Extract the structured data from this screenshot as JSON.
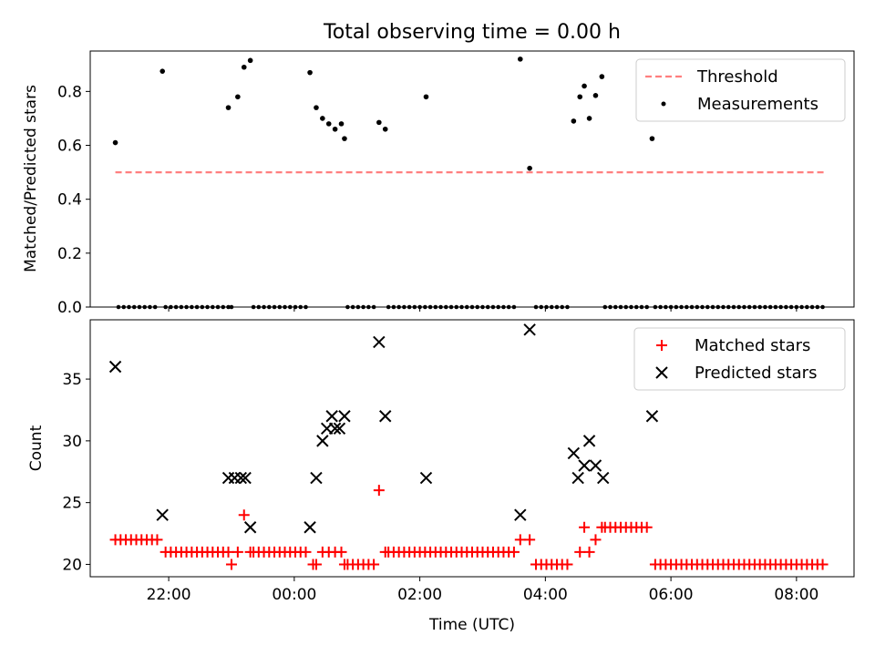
{
  "title": "Total observing time = 0.00 h",
  "chart_data": [
    {
      "type": "scatter",
      "ylabel": "Matched/Predicted stars",
      "ylim": [
        0,
        0.95
      ],
      "yticks": [
        0.0,
        0.2,
        0.4,
        0.6,
        0.8
      ],
      "ytick_labels": [
        "0.0",
        "0.2",
        "0.4",
        "0.6",
        "0.8"
      ],
      "threshold": {
        "name": "Threshold",
        "value": 0.5,
        "x_range": [
          21.15,
          8.45
        ],
        "color": "#ff7f7f",
        "style": "dashed"
      },
      "measurements": {
        "name": "Measurements",
        "color": "#000000",
        "nonzero": [
          [
            21.15,
            0.61
          ],
          [
            21.9,
            0.875
          ],
          [
            22.95,
            0.74
          ],
          [
            23.1,
            0.78
          ],
          [
            23.2,
            0.89
          ],
          [
            23.3,
            0.915
          ],
          [
            0.25,
            0.87
          ],
          [
            0.35,
            0.74
          ],
          [
            0.45,
            0.7
          ],
          [
            0.55,
            0.68
          ],
          [
            0.65,
            0.66
          ],
          [
            0.75,
            0.68
          ],
          [
            0.8,
            0.625
          ],
          [
            1.35,
            0.685
          ],
          [
            1.45,
            0.66
          ],
          [
            2.1,
            0.78
          ],
          [
            3.6,
            0.92
          ],
          [
            3.75,
            0.515
          ],
          [
            4.45,
            0.69
          ],
          [
            4.55,
            0.78
          ],
          [
            4.62,
            0.82
          ],
          [
            4.7,
            0.7
          ],
          [
            4.8,
            0.785
          ],
          [
            4.9,
            0.855
          ],
          [
            5.7,
            0.625
          ]
        ],
        "zero_segments": [
          [
            21.2,
            21.85
          ],
          [
            21.95,
            22.95
          ],
          [
            23.0,
            23.05
          ],
          [
            23.35,
            0.25
          ],
          [
            0.85,
            1.3
          ],
          [
            1.5,
            3.55
          ],
          [
            3.85,
            4.4
          ],
          [
            4.95,
            5.65
          ],
          [
            5.75,
            8.45
          ]
        ]
      },
      "legend": {
        "position": "upper right",
        "entries": [
          "Threshold",
          "Measurements"
        ]
      }
    },
    {
      "type": "scatter",
      "xlabel": "Time (UTC)",
      "ylabel": "Count",
      "ylim": [
        19,
        39.8
      ],
      "yticks": [
        20,
        25,
        30,
        35
      ],
      "ytick_labels": [
        "20",
        "25",
        "30",
        "35"
      ],
      "xlim": [
        "20:45",
        "08:55"
      ],
      "xticks": [
        "22:00",
        "00:00",
        "02:00",
        "04:00",
        "06:00",
        "08:00"
      ],
      "matched": {
        "name": "Matched stars",
        "color": "#ff0000",
        "segments": [
          {
            "from": 21.15,
            "to": 21.85,
            "y": 22
          },
          {
            "from": 21.95,
            "to": 22.95,
            "y": 21
          },
          {
            "from": 23.0,
            "to": 23.05,
            "y": 20
          },
          {
            "from": 23.35,
            "to": 0.25,
            "y": 21
          },
          {
            "from": 0.85,
            "to": 1.3,
            "y": 20
          },
          {
            "from": 1.5,
            "to": 3.55,
            "y": 21
          },
          {
            "from": 3.85,
            "to": 4.4,
            "y": 20
          },
          {
            "from": 4.95,
            "to": 5.65,
            "y": 23
          },
          {
            "from": 5.75,
            "to": 8.45,
            "y": 20
          }
        ],
        "points": [
          [
            23.1,
            21
          ],
          [
            23.2,
            24
          ],
          [
            23.3,
            21
          ],
          [
            0.3,
            20
          ],
          [
            0.35,
            20
          ],
          [
            0.45,
            21
          ],
          [
            0.55,
            21
          ],
          [
            0.65,
            21
          ],
          [
            0.75,
            21
          ],
          [
            0.8,
            20
          ],
          [
            1.35,
            26
          ],
          [
            1.45,
            21
          ],
          [
            3.6,
            22
          ],
          [
            3.75,
            22
          ],
          [
            4.55,
            21
          ],
          [
            4.62,
            23
          ],
          [
            4.7,
            21
          ],
          [
            4.8,
            22
          ],
          [
            4.9,
            23
          ]
        ]
      },
      "predicted": {
        "name": "Predicted stars",
        "color": "#000000",
        "points": [
          [
            21.15,
            36
          ],
          [
            21.9,
            24
          ],
          [
            22.95,
            27
          ],
          [
            23.05,
            27
          ],
          [
            23.15,
            27
          ],
          [
            23.22,
            27
          ],
          [
            23.3,
            23
          ],
          [
            0.25,
            23
          ],
          [
            0.35,
            27
          ],
          [
            0.45,
            30
          ],
          [
            0.52,
            31
          ],
          [
            0.6,
            32
          ],
          [
            0.65,
            31
          ],
          [
            0.72,
            31
          ],
          [
            0.8,
            32
          ],
          [
            1.35,
            38
          ],
          [
            1.45,
            32
          ],
          [
            2.1,
            27
          ],
          [
            3.6,
            24
          ],
          [
            3.75,
            39
          ],
          [
            4.45,
            29
          ],
          [
            4.52,
            27
          ],
          [
            4.62,
            28
          ],
          [
            4.7,
            30
          ],
          [
            4.8,
            28
          ],
          [
            4.92,
            27
          ],
          [
            5.7,
            32
          ]
        ]
      },
      "legend": {
        "position": "upper right",
        "entries": [
          "Matched stars",
          "Predicted stars"
        ]
      }
    }
  ]
}
